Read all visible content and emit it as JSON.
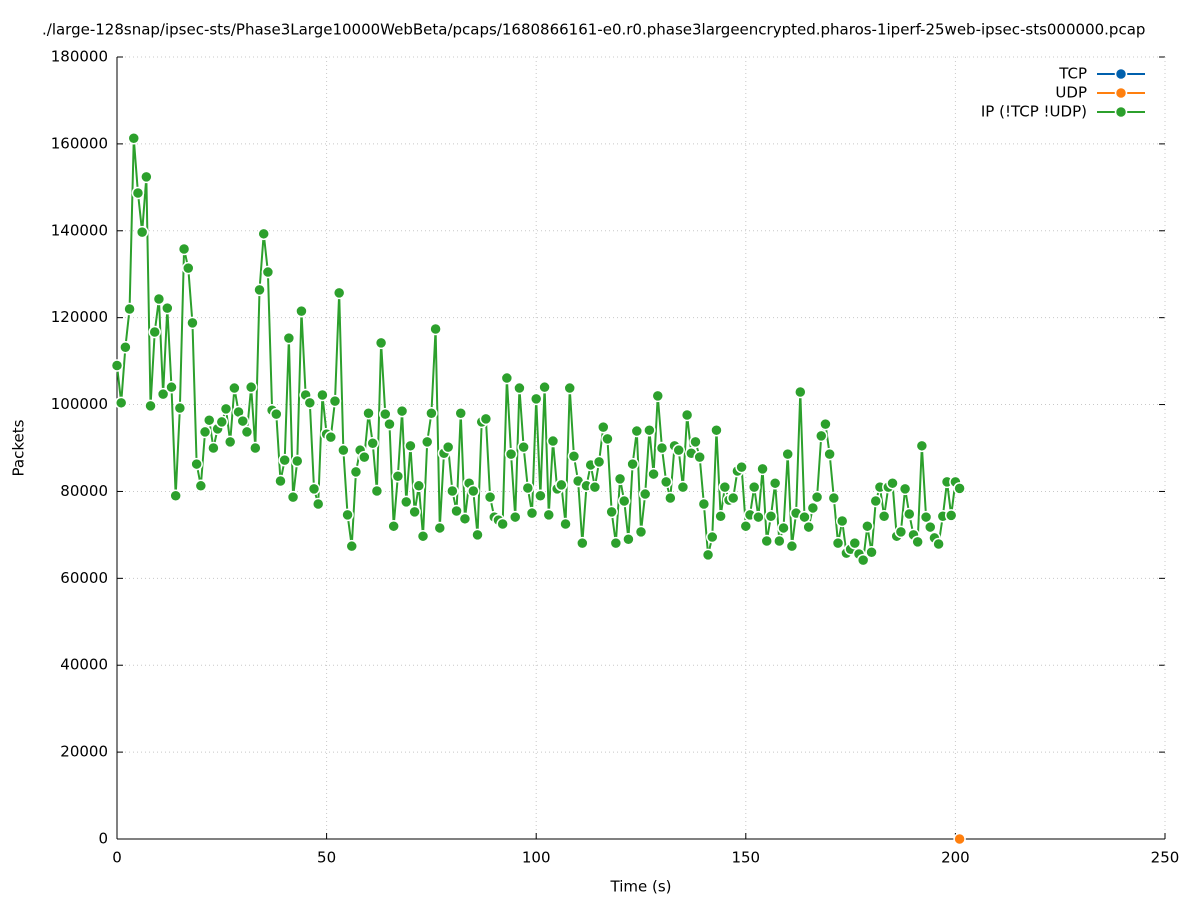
{
  "chart_data": {
    "type": "line",
    "title": "./large-128snap/ipsec-sts/Phase3Large10000WebBeta/pcaps/1680866161-e0.r0.phase3largeencrypted.pharos-1iperf-25web-ipsec-sts000000.pcap",
    "xlabel": "Time (s)",
    "ylabel": "Packets",
    "xlim": [
      0,
      250
    ],
    "xticks": [
      0,
      50,
      100,
      150,
      200,
      250
    ],
    "ylim": [
      0,
      180000
    ],
    "yticks": [
      0,
      20000,
      40000,
      60000,
      80000,
      100000,
      120000,
      140000,
      160000,
      180000
    ],
    "grid": true,
    "legend": "top-right",
    "series": [
      {
        "name": "TCP",
        "color": "#0060ad",
        "x": [],
        "values": []
      },
      {
        "name": "UDP",
        "color": "#ff7f0e",
        "x": [
          201
        ],
        "values": [
          0
        ]
      },
      {
        "name": "IP (!TCP  !UDP)",
        "color": "#2ca02c",
        "x": [
          0,
          1,
          2,
          3,
          4,
          5,
          6,
          7,
          8,
          9,
          10,
          11,
          12,
          13,
          14,
          15,
          16,
          17,
          18,
          19,
          20,
          21,
          22,
          23,
          24,
          25,
          26,
          27,
          28,
          29,
          30,
          31,
          32,
          33,
          34,
          35,
          36,
          37,
          38,
          39,
          40,
          41,
          42,
          43,
          44,
          45,
          46,
          47,
          48,
          49,
          50,
          51,
          52,
          53,
          54,
          55,
          56,
          57,
          58,
          59,
          60,
          61,
          62,
          63,
          64,
          65,
          66,
          67,
          68,
          69,
          70,
          71,
          72,
          73,
          74,
          75,
          76,
          77,
          78,
          79,
          80,
          81,
          82,
          83,
          84,
          85,
          86,
          87,
          88,
          89,
          90,
          91,
          92,
          93,
          94,
          95,
          96,
          97,
          98,
          99,
          100,
          101,
          102,
          103,
          104,
          105,
          106,
          107,
          108,
          109,
          110,
          111,
          112,
          113,
          114,
          115,
          116,
          117,
          118,
          119,
          120,
          121,
          122,
          123,
          124,
          125,
          126,
          127,
          128,
          129,
          130,
          131,
          132,
          133,
          134,
          135,
          136,
          137,
          138,
          139,
          140,
          141,
          142,
          143,
          144,
          145,
          146,
          147,
          148,
          149,
          150,
          151,
          152,
          153,
          154,
          155,
          156,
          157,
          158,
          159,
          160,
          161,
          162,
          163,
          164,
          165,
          166,
          167,
          168,
          169,
          170,
          171,
          172,
          173,
          174,
          175,
          176,
          177,
          178,
          179,
          180,
          181,
          182,
          183,
          184,
          185,
          186,
          187,
          188,
          189,
          190,
          191,
          192,
          193,
          194,
          195,
          196,
          197,
          198,
          199,
          200,
          201
        ],
        "values": [
          109000,
          100400,
          113200,
          122000,
          161300,
          148700,
          139700,
          152400,
          99700,
          116700,
          124300,
          102400,
          122200,
          104000,
          79000,
          99200,
          135800,
          131400,
          118800,
          86300,
          81300,
          93700,
          96400,
          90000,
          94400,
          96000,
          99000,
          91400,
          103800,
          98300,
          96200,
          93700,
          104000,
          90000,
          126400,
          139300,
          130500,
          98700,
          97800,
          82400,
          87200,
          115300,
          78700,
          87000,
          121500,
          102200,
          100400,
          80600,
          77100,
          102200,
          93200,
          92500,
          100800,
          125700,
          89500,
          74600,
          67400,
          84500,
          89500,
          87900,
          98000,
          91100,
          80100,
          114200,
          97800,
          95500,
          72000,
          83500,
          98500,
          77600,
          90500,
          75300,
          81300,
          69700,
          91400,
          98000,
          117400,
          71600,
          88800,
          90200,
          80100,
          75500,
          98000,
          73700,
          81900,
          80100,
          70000,
          96000,
          96700,
          78700,
          74100,
          73400,
          72500,
          106100,
          88600,
          74100,
          103800,
          90200,
          80800,
          75000,
          101300,
          79000,
          104000,
          74600,
          91600,
          80600,
          81500,
          72500,
          103800,
          88100,
          82400,
          68100,
          81300,
          86100,
          81000,
          86800,
          94800,
          92100,
          75300,
          68100,
          82900,
          77800,
          69000,
          86300,
          93900,
          70700,
          79400,
          94100,
          84000,
          102000,
          90000,
          82200,
          78500,
          90500,
          89500,
          81000,
          97600,
          88800,
          91400,
          87900,
          77100,
          65400,
          69500,
          94100,
          74300,
          81000,
          78000,
          78500,
          84700,
          85600,
          72000,
          74600,
          81000,
          74100,
          85200,
          68600,
          74300,
          81900,
          68600,
          71600,
          88600,
          67400,
          75000,
          102900,
          74100,
          71800,
          76200,
          78700,
          92800,
          95500,
          88600,
          78500,
          68100,
          73200,
          65800,
          66700,
          68100,
          65600,
          64200,
          72000,
          66000,
          77800,
          81000,
          74300,
          81000,
          81900,
          69700,
          70700,
          80600,
          74800,
          70000,
          68400,
          90500,
          74100,
          71800,
          69300,
          67900,
          74300,
          82200,
          74500,
          82200,
          80700
        ]
      }
    ]
  }
}
